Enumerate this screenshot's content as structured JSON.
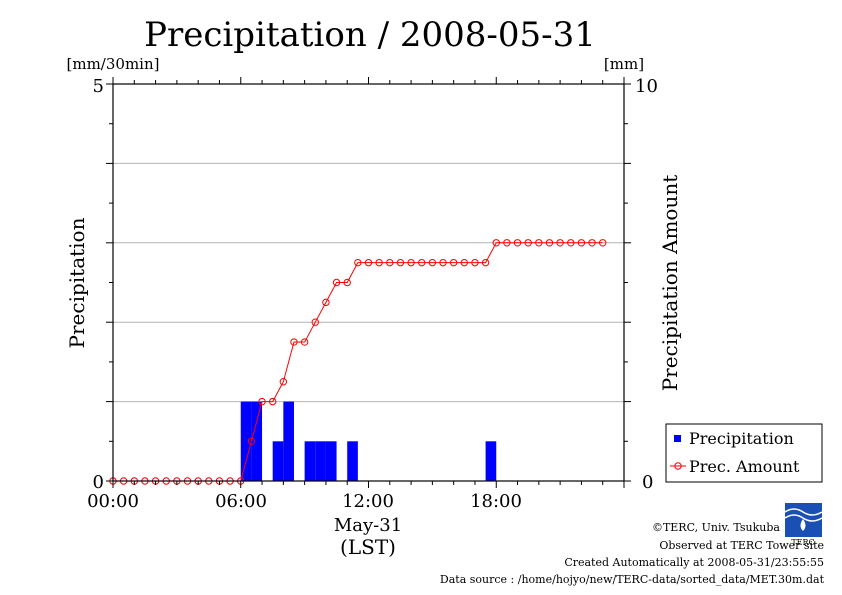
{
  "chart_data": {
    "type": "bar+line",
    "title": "Precipitation / 2008-05-31",
    "left_unit": "[mm/30min]",
    "right_unit": "[mm]",
    "ylabel_left": "Precipitation",
    "ylabel_right": "Precipitation Amount",
    "ylim_left": [
      0,
      5
    ],
    "ylim_right": [
      0,
      10
    ],
    "left_tick_labels": [
      "0",
      "5"
    ],
    "right_tick_labels": [
      "0",
      "10"
    ],
    "x_range_hours": [
      0,
      24
    ],
    "x_tick_labels": [
      "00:00",
      "06:00",
      "12:00",
      "18:00"
    ],
    "x_date_label": "May-31",
    "x_timezone_label": "(LST)",
    "grid": "horizontal",
    "legend_position": "lower-right",
    "series": [
      {
        "name": "Precipitation",
        "type": "bar",
        "color": "#0000ff",
        "x_start": [
          "06:00",
          "06:30",
          "07:30",
          "08:00",
          "09:00",
          "09:30",
          "10:00",
          "11:00",
          "17:30"
        ],
        "values": [
          1.0,
          1.0,
          0.5,
          1.0,
          0.5,
          0.5,
          0.5,
          0.5,
          0.5
        ]
      },
      {
        "name": "Prec. Amount",
        "type": "line",
        "color": "#ff0000",
        "x_hours": [
          0,
          0.5,
          1,
          1.5,
          2,
          2.5,
          3,
          3.5,
          4,
          4.5,
          5,
          5.5,
          6,
          6.5,
          7,
          7.5,
          8,
          8.5,
          9,
          9.5,
          10,
          10.5,
          11,
          11.5,
          12,
          12.5,
          13,
          13.5,
          14,
          14.5,
          15,
          15.5,
          16,
          16.5,
          17,
          17.5,
          18,
          18.5,
          19,
          19.5,
          20,
          20.5,
          21,
          21.5,
          22,
          22.5,
          23
        ],
        "values": [
          0,
          0,
          0,
          0,
          0,
          0,
          0,
          0,
          0,
          0,
          0,
          0,
          0,
          1,
          2,
          2,
          2.5,
          3.5,
          3.5,
          4,
          4.5,
          5,
          5,
          5.5,
          5.5,
          5.5,
          5.5,
          5.5,
          5.5,
          5.5,
          5.5,
          5.5,
          5.5,
          5.5,
          5.5,
          5.5,
          6,
          6,
          6,
          6,
          6,
          6,
          6,
          6,
          6,
          6,
          6
        ]
      }
    ]
  },
  "footer": {
    "copyright": "©TERC, Univ. Tsukuba",
    "observed": "Observed at TERC Tower site",
    "created": "Created Automatically at 2008-05-31/23:55:55",
    "source": "Data source : /home/hojyo/new/TERC-data/sorted_data/MET.30m.dat",
    "logo_text": "TERC"
  }
}
